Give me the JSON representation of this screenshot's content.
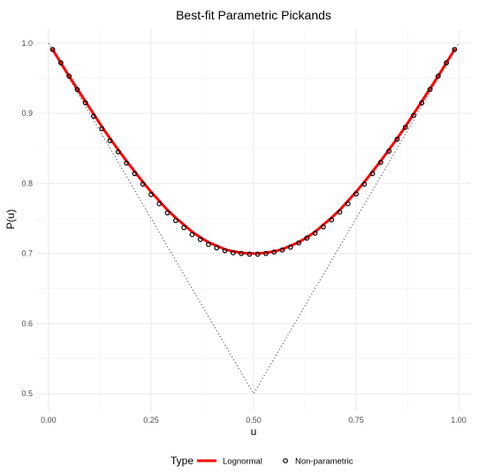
{
  "chart_data": {
    "type": "line",
    "title": "Best-fit Parametric Pickands",
    "xlabel": "u",
    "ylabel": "P(u)",
    "xlim": [
      -0.03,
      1.03
    ],
    "ylim": [
      0.475,
      1.02
    ],
    "x_ticks": [
      0.0,
      0.25,
      0.5,
      0.75,
      1.0
    ],
    "x_tick_labels": [
      "0.00",
      "0.25",
      "0.50",
      "0.75",
      "1.00"
    ],
    "y_ticks": [
      0.5,
      0.6,
      0.7,
      0.8,
      0.9,
      1.0
    ],
    "y_tick_labels": [
      "0.5",
      "0.6",
      "0.7",
      "0.8",
      "0.9",
      "1.0"
    ],
    "grid": true,
    "legend": {
      "title": "Type",
      "position": "bottom",
      "entries": [
        {
          "label": "Lognormal",
          "kind": "line",
          "color": "#ff0000"
        },
        {
          "label": "Non-parametric",
          "kind": "point",
          "color": "#000000"
        }
      ]
    },
    "series": [
      {
        "name": "Lognormal",
        "kind": "line",
        "color": "#ff0000",
        "x": [
          0.01,
          0.03,
          0.05,
          0.07,
          0.09,
          0.11,
          0.13,
          0.15,
          0.17,
          0.19,
          0.21,
          0.23,
          0.25,
          0.27,
          0.29,
          0.31,
          0.33,
          0.35,
          0.37,
          0.39,
          0.41,
          0.43,
          0.45,
          0.47,
          0.49,
          0.5,
          0.51,
          0.53,
          0.55,
          0.57,
          0.59,
          0.61,
          0.63,
          0.65,
          0.67,
          0.69,
          0.71,
          0.73,
          0.75,
          0.77,
          0.79,
          0.81,
          0.83,
          0.85,
          0.87,
          0.89,
          0.91,
          0.93,
          0.95,
          0.97,
          0.99
        ],
        "y": [
          0.991,
          0.972,
          0.953,
          0.935,
          0.917,
          0.899,
          0.881,
          0.864,
          0.848,
          0.832,
          0.817,
          0.802,
          0.788,
          0.775,
          0.762,
          0.751,
          0.741,
          0.731,
          0.723,
          0.716,
          0.711,
          0.706,
          0.703,
          0.701,
          0.7,
          0.7,
          0.7,
          0.701,
          0.703,
          0.706,
          0.711,
          0.716,
          0.723,
          0.731,
          0.741,
          0.751,
          0.762,
          0.775,
          0.788,
          0.802,
          0.817,
          0.832,
          0.848,
          0.864,
          0.881,
          0.899,
          0.917,
          0.935,
          0.953,
          0.972,
          0.991
        ]
      },
      {
        "name": "Non-parametric",
        "kind": "point",
        "color": "#000000",
        "x": [
          0.01,
          0.03,
          0.05,
          0.07,
          0.09,
          0.11,
          0.13,
          0.15,
          0.17,
          0.19,
          0.21,
          0.23,
          0.25,
          0.27,
          0.29,
          0.31,
          0.33,
          0.35,
          0.37,
          0.39,
          0.41,
          0.43,
          0.45,
          0.47,
          0.49,
          0.51,
          0.53,
          0.55,
          0.57,
          0.59,
          0.61,
          0.63,
          0.65,
          0.67,
          0.69,
          0.71,
          0.73,
          0.75,
          0.77,
          0.79,
          0.81,
          0.83,
          0.85,
          0.87,
          0.89,
          0.91,
          0.93,
          0.95,
          0.97,
          0.99
        ],
        "y": [
          0.991,
          0.972,
          0.953,
          0.934,
          0.915,
          0.896,
          0.878,
          0.861,
          0.845,
          0.829,
          0.814,
          0.799,
          0.784,
          0.771,
          0.758,
          0.747,
          0.737,
          0.727,
          0.72,
          0.713,
          0.708,
          0.704,
          0.701,
          0.7,
          0.699,
          0.699,
          0.7,
          0.702,
          0.705,
          0.709,
          0.715,
          0.722,
          0.729,
          0.738,
          0.748,
          0.759,
          0.771,
          0.785,
          0.799,
          0.814,
          0.83,
          0.846,
          0.863,
          0.88,
          0.897,
          0.915,
          0.934,
          0.953,
          0.972,
          0.991
        ]
      },
      {
        "name": "",
        "kind": "dotted-line",
        "color": "#555555",
        "x": [
          0.0,
          0.5,
          1.0
        ],
        "y": [
          1.0,
          0.5,
          1.0
        ]
      }
    ]
  }
}
